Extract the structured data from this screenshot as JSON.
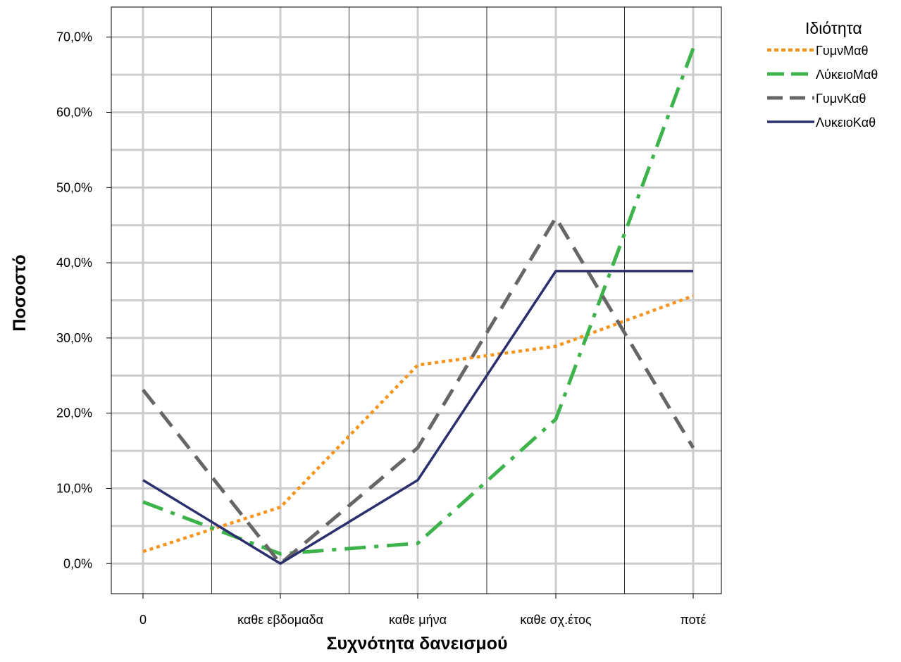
{
  "chart_data": {
    "type": "line",
    "title": "",
    "xlabel": "Συχνότητα δανεισμού",
    "ylabel": "Ποσοστό",
    "categories": [
      "0",
      "καθε εβδομαδα",
      "καθε μήνα",
      "καθε σχ.έτος",
      "ποτέ"
    ],
    "yticks": [
      "0,0%",
      "10,0%",
      "20,0%",
      "30,0%",
      "40,0%",
      "50,0%",
      "60,0%",
      "70,0%"
    ],
    "ylim": [
      -4,
      74
    ],
    "grid": true,
    "legend_title": "Ιδιότητα",
    "legend_position": "top-right",
    "series": [
      {
        "name": "ΓυμνΜαθ",
        "values": [
          1.6,
          7.5,
          26.4,
          28.9,
          35.6
        ],
        "color": "#f7941d",
        "dash": "dotted"
      },
      {
        "name": "ΛύκειοΜαθ",
        "values": [
          8.2,
          1.3,
          2.7,
          19.2,
          68.5
        ],
        "color": "#3cb44b",
        "dash": "dash-dot"
      },
      {
        "name": "ΓυμνΚαθ",
        "values": [
          23.1,
          0.0,
          15.4,
          46.0,
          15.4
        ],
        "color": "#666666",
        "dash": "dashed"
      },
      {
        "name": "ΛυκειοΚαθ",
        "values": [
          11.1,
          0.0,
          11.1,
          38.9,
          38.9
        ],
        "color": "#2b2f6e",
        "dash": "solid"
      }
    ]
  }
}
